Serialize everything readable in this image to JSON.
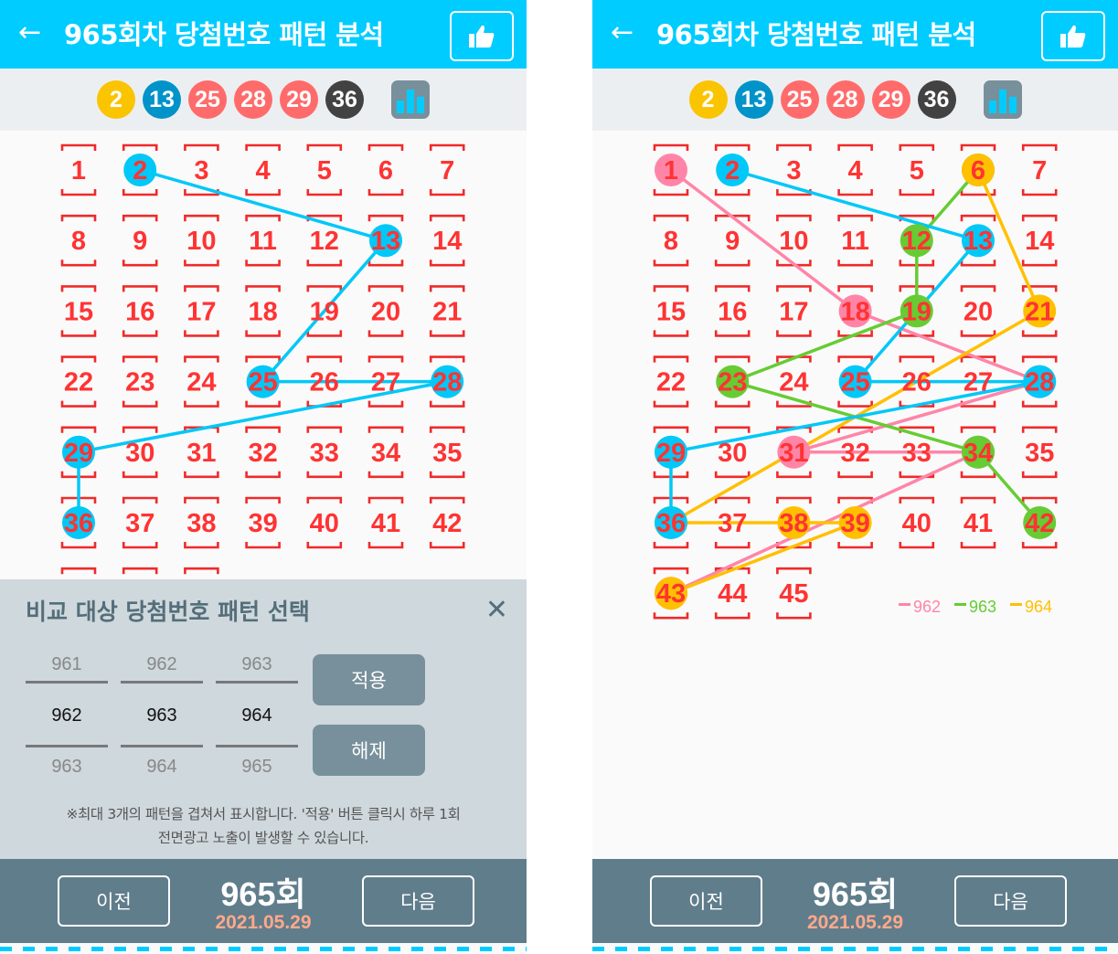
{
  "header": {
    "back_icon": "arrow-left-icon",
    "title": "965회차 당첨번호 패턴 분석",
    "like_icon": "thumbs-up-icon"
  },
  "winning_balls": [
    {
      "n": "2",
      "color": "#FBC400"
    },
    {
      "n": "13",
      "color": "#0093C9"
    },
    {
      "n": "25",
      "color": "#FF6B6B"
    },
    {
      "n": "28",
      "color": "#FF6B6B"
    },
    {
      "n": "29",
      "color": "#FF6B6B"
    },
    {
      "n": "36",
      "color": "#424242"
    }
  ],
  "stats_icon": "bar-chart-icon",
  "numbers_total": 45,
  "patterns": {
    "962": {
      "color": "#FF85A8",
      "numbers": [
        1,
        18,
        28,
        31,
        34,
        43
      ]
    },
    "963": {
      "color": "#66CC33",
      "numbers": [
        6,
        12,
        19,
        23,
        34,
        42
      ]
    },
    "964": {
      "color": "#FFC000",
      "numbers": [
        6,
        21,
        36,
        38,
        39,
        43
      ]
    },
    "965": {
      "color": "#00C8F8",
      "numbers": [
        2,
        13,
        25,
        28,
        29,
        36
      ]
    }
  },
  "left_panel": {
    "shown_patterns": [
      "965"
    ]
  },
  "right_panel": {
    "shown_patterns": [
      "962",
      "963",
      "964",
      "965"
    ],
    "legend": [
      "962",
      "963",
      "964"
    ]
  },
  "modal": {
    "title": "비교 대상 당첨번호 패턴 선택",
    "close_icon": "close-icon",
    "pickers": [
      {
        "above": "961",
        "selected": "962",
        "below": "963"
      },
      {
        "above": "962",
        "selected": "963",
        "below": "964"
      },
      {
        "above": "963",
        "selected": "964",
        "below": "965"
      }
    ],
    "apply_label": "적용",
    "clear_label": "해제",
    "note_line1": "※최대 3개의 패턴을 겹쳐서 표시합니다. '적용' 버튼 클릭시 하루 1회",
    "note_line2": "전면광고 노출이 발생할 수 있습니다."
  },
  "footer": {
    "prev_label": "이전",
    "round": "965회",
    "date": "2021.05.29",
    "next_label": "다음"
  },
  "colors": {
    "header": "#00CCFF",
    "grid_number": "#FF3333",
    "footer": "#607D8B"
  }
}
